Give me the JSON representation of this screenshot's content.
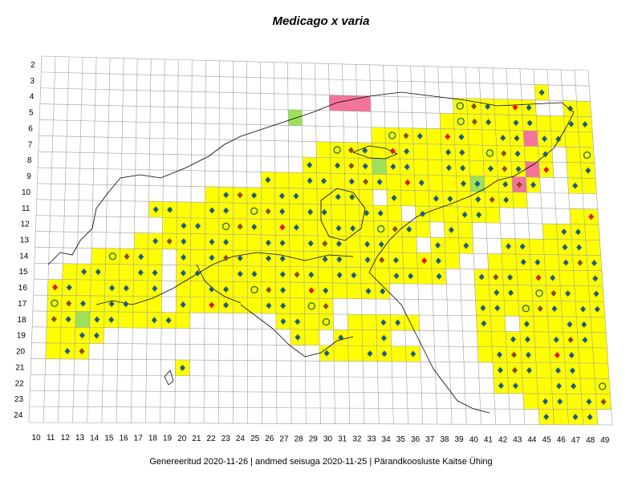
{
  "title": "Medicago x varia",
  "footer": "Genereeritud 2020-11-26  |  andmed seisuga 2020-11-25  |  Pärandkoosluste Kaitse Ühing",
  "colors": {
    "grid": "#9e9e9e",
    "present": "#ffff00",
    "pink": "#f4739a",
    "green": "#9ee05a",
    "blue_marker": "#1a5c8a",
    "brown_marker": "#8b4a1e",
    "red_marker": "#e8121a",
    "ring_marker": "#2e7d5b",
    "coast": "#000000"
  },
  "columns": [
    "10",
    "11",
    "12",
    "13",
    "14",
    "15",
    "16",
    "17",
    "18",
    "19",
    "20",
    "21",
    "22",
    "23",
    "24",
    "25",
    "26",
    "27",
    "28",
    "29",
    "30",
    "31",
    "32",
    "33",
    "34",
    "35",
    "36",
    "37",
    "38",
    "39",
    "40",
    "41",
    "42",
    "43",
    "44",
    "45",
    "46",
    "47",
    "48",
    "49"
  ],
  "rows": [
    "2",
    "3",
    "4",
    "5",
    "6",
    "7",
    "8",
    "9",
    "10",
    "11",
    "12",
    "13",
    "14",
    "15",
    "16",
    "17",
    "18",
    "19",
    "20",
    "21",
    "22",
    "23",
    "24"
  ]
}
